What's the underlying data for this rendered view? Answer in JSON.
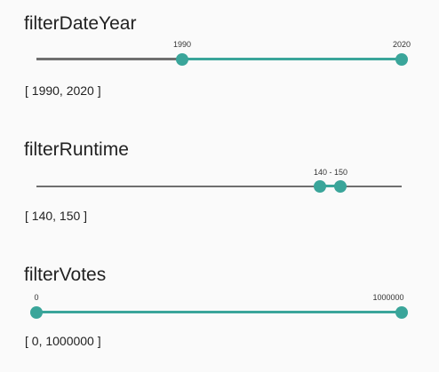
{
  "colors": {
    "accent": "#3aa59a",
    "rail": "#6f6f6f",
    "background": "#fafafa"
  },
  "filters": [
    {
      "title": "filterDateYear",
      "min": 1970,
      "max": 2020,
      "low": 1990,
      "high": 2020,
      "low_label": "1990",
      "high_label": "2020",
      "value_text": "[ 1990, 2020 ]"
    },
    {
      "title": "filterRuntime",
      "min": 0,
      "max": 200,
      "low": 140,
      "high": 150,
      "combined_label": "140 - 150",
      "value_text": "[ 140, 150 ]"
    },
    {
      "title": "filterVotes",
      "min": 0,
      "max": 1000000,
      "low": 0,
      "high": 1000000,
      "low_label": "0",
      "high_label": "1000000",
      "value_text": "[ 0, 1000000 ]"
    }
  ]
}
